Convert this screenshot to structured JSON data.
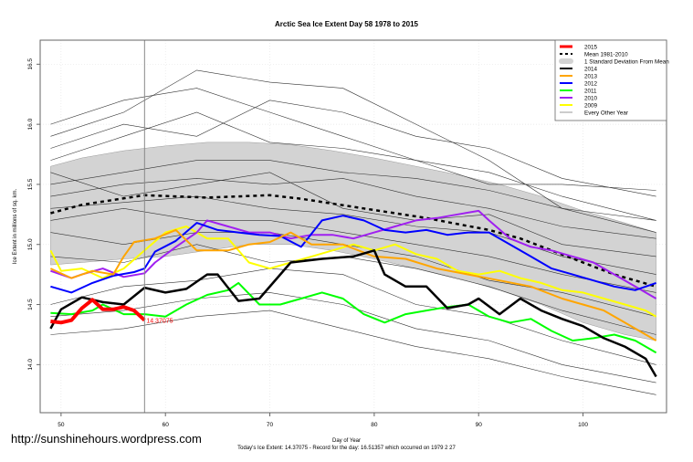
{
  "chart_data": {
    "type": "line",
    "title": "Arctic Sea Ice Extent Day 58 1978 to 2015",
    "xlabel": "Day of Year",
    "ylabel": "Ice Extent in millions of sq. km.",
    "xlim": [
      48,
      108
    ],
    "ylim": [
      13.6,
      16.7
    ],
    "xticks": [
      50,
      60,
      70,
      80,
      90,
      100
    ],
    "yticks": [
      14.0,
      14.5,
      15.0,
      15.5,
      16.0,
      16.5
    ],
    "ytick_labels": [
      "14.0",
      "14.5",
      "15.0",
      "15.5",
      "16.0",
      "16.5"
    ],
    "grid": true,
    "legend_position": "top-right",
    "current_day_marker": 58,
    "annotation": "14.37075",
    "std_band": {
      "name": "1 Standard Deviation From Mean",
      "color": "#d3d3d3",
      "x": [
        49,
        52,
        56,
        60,
        64,
        68,
        72,
        76,
        80,
        84,
        88,
        92,
        96,
        100,
        104,
        107
      ],
      "upper": [
        15.65,
        15.72,
        15.78,
        15.82,
        15.85,
        15.85,
        15.83,
        15.78,
        15.72,
        15.65,
        15.58,
        15.5,
        15.4,
        15.28,
        15.18,
        15.1
      ],
      "lower": [
        14.83,
        14.85,
        14.88,
        14.9,
        14.95,
        15.0,
        15.0,
        14.95,
        14.88,
        14.8,
        14.72,
        14.62,
        14.5,
        14.35,
        14.25,
        14.2
      ]
    },
    "mean": {
      "name": "Mean 1981-2010",
      "color": "#000000",
      "x": [
        49,
        52,
        55,
        58,
        61,
        64,
        67,
        70,
        73,
        76,
        79,
        82,
        85,
        88,
        91,
        94,
        97,
        100,
        103,
        107
      ],
      "y": [
        15.26,
        15.33,
        15.37,
        15.41,
        15.4,
        15.39,
        15.4,
        15.41,
        15.38,
        15.34,
        15.3,
        15.26,
        15.22,
        15.17,
        15.12,
        15.05,
        14.95,
        14.85,
        14.75,
        14.65
      ]
    },
    "series": [
      {
        "name": "2015",
        "color": "#ff0000",
        "width": 4,
        "x": [
          49,
          50,
          51,
          52,
          53,
          54,
          55,
          56,
          57,
          58
        ],
        "y": [
          14.36,
          14.35,
          14.37,
          14.47,
          14.54,
          14.46,
          14.46,
          14.48,
          14.45,
          14.37
        ]
      },
      {
        "name": "2014",
        "color": "#000000",
        "width": 2.5,
        "x": [
          49,
          50,
          52,
          54,
          56,
          58,
          60,
          62,
          64,
          65,
          67,
          69,
          72,
          75,
          78,
          80,
          81,
          83,
          85,
          87,
          89,
          90,
          92,
          94,
          96,
          98,
          100,
          102,
          104,
          106,
          107
        ],
        "y": [
          14.3,
          14.46,
          14.56,
          14.52,
          14.5,
          14.64,
          14.6,
          14.63,
          14.75,
          14.75,
          14.53,
          14.55,
          14.85,
          14.88,
          14.9,
          14.95,
          14.75,
          14.65,
          14.65,
          14.47,
          14.5,
          14.55,
          14.42,
          14.55,
          14.45,
          14.38,
          14.32,
          14.22,
          14.15,
          14.05,
          13.9
        ]
      },
      {
        "name": "2013",
        "color": "#ffa500",
        "width": 2,
        "x": [
          49,
          51,
          53,
          55,
          56,
          57,
          59,
          61,
          63,
          66,
          68,
          70,
          72,
          74,
          77,
          80,
          83,
          86,
          89,
          92,
          95,
          98,
          100,
          102,
          104,
          107
        ],
        "y": [
          14.8,
          14.72,
          14.78,
          14.75,
          14.9,
          15.02,
          15.05,
          15.12,
          14.95,
          14.95,
          15.0,
          15.02,
          15.1,
          15.0,
          15.0,
          14.9,
          14.88,
          14.8,
          14.75,
          14.7,
          14.65,
          14.55,
          14.5,
          14.45,
          14.35,
          14.2
        ]
      },
      {
        "name": "2012",
        "color": "#0000ff",
        "width": 2,
        "x": [
          49,
          51,
          53,
          55,
          57,
          58,
          59,
          61,
          63,
          65,
          67,
          69,
          71,
          73,
          75,
          77,
          79,
          81,
          83,
          85,
          87,
          89,
          91,
          93,
          95,
          97,
          99,
          101,
          103,
          105,
          107
        ],
        "y": [
          14.65,
          14.6,
          14.68,
          14.74,
          14.77,
          14.8,
          14.94,
          15.03,
          15.18,
          15.12,
          15.1,
          15.08,
          15.07,
          14.98,
          15.2,
          15.24,
          15.2,
          15.12,
          15.1,
          15.12,
          15.08,
          15.1,
          15.1,
          15.0,
          14.9,
          14.8,
          14.75,
          14.7,
          14.65,
          14.62,
          14.68
        ]
      },
      {
        "name": "2011",
        "color": "#00ff00",
        "width": 2,
        "x": [
          49,
          51,
          53,
          54,
          56,
          58,
          60,
          62,
          64,
          66,
          67,
          69,
          71,
          73,
          75,
          77,
          79,
          81,
          83,
          85,
          87,
          89,
          91,
          93,
          95,
          97,
          99,
          101,
          103,
          105,
          107
        ],
        "y": [
          14.43,
          14.42,
          14.45,
          14.5,
          14.42,
          14.42,
          14.4,
          14.5,
          14.58,
          14.62,
          14.68,
          14.5,
          14.5,
          14.55,
          14.6,
          14.55,
          14.42,
          14.35,
          14.42,
          14.45,
          14.48,
          14.5,
          14.4,
          14.35,
          14.38,
          14.28,
          14.2,
          14.22,
          14.25,
          14.2,
          14.1
        ]
      },
      {
        "name": "2010",
        "color": "#a020f0",
        "width": 2,
        "x": [
          49,
          51,
          52,
          54,
          56,
          58,
          59,
          61,
          63,
          64,
          66,
          68,
          70,
          72,
          74,
          76,
          78,
          80,
          82,
          84,
          86,
          88,
          90,
          91,
          93,
          95,
          97,
          99,
          101,
          103,
          105,
          107
        ],
        "y": [
          14.78,
          14.72,
          14.75,
          14.8,
          14.73,
          14.76,
          14.85,
          14.98,
          15.1,
          15.2,
          15.15,
          15.1,
          15.1,
          15.05,
          15.08,
          15.08,
          15.05,
          15.1,
          15.15,
          15.2,
          15.22,
          15.25,
          15.28,
          15.2,
          15.05,
          14.98,
          14.95,
          14.9,
          14.85,
          14.75,
          14.65,
          14.55
        ]
      },
      {
        "name": "2009",
        "color": "#ffff00",
        "width": 2,
        "x": [
          49,
          50,
          52,
          54,
          56,
          58,
          60,
          62,
          64,
          66,
          68,
          70,
          72,
          74,
          76,
          78,
          80,
          82,
          84,
          86,
          88,
          90,
          92,
          94,
          96,
          98,
          100,
          102,
          104,
          106,
          107
        ],
        "y": [
          14.95,
          14.78,
          14.8,
          14.72,
          14.8,
          14.95,
          15.1,
          15.15,
          15.05,
          15.05,
          14.85,
          14.8,
          14.85,
          14.9,
          14.95,
          15.0,
          14.95,
          15.0,
          14.92,
          14.88,
          14.78,
          14.75,
          14.78,
          14.72,
          14.68,
          14.62,
          14.6,
          14.55,
          14.5,
          14.45,
          14.4
        ]
      }
    ],
    "other_years": {
      "name": "Every Other Year",
      "color": "#333333",
      "x": [
        49,
        56,
        63,
        70,
        77,
        84,
        91,
        98,
        107
      ],
      "lines": [
        [
          15.9,
          16.1,
          16.45,
          16.35,
          16.3,
          16.0,
          15.7,
          15.3,
          15.2
        ],
        [
          16.0,
          16.2,
          16.3,
          16.1,
          15.9,
          15.7,
          15.5,
          15.5,
          15.45
        ],
        [
          15.8,
          16.0,
          15.9,
          16.2,
          16.1,
          15.9,
          15.8,
          15.55,
          15.4
        ],
        [
          15.7,
          15.9,
          16.1,
          15.85,
          15.8,
          15.7,
          15.6,
          15.4,
          15.2
        ],
        [
          15.5,
          15.6,
          15.7,
          15.7,
          15.6,
          15.55,
          15.45,
          15.3,
          15.1
        ],
        [
          15.4,
          15.5,
          15.55,
          15.5,
          15.55,
          15.4,
          15.3,
          15.15,
          15.05
        ],
        [
          15.6,
          15.4,
          15.5,
          15.6,
          15.3,
          15.2,
          15.25,
          15.0,
          14.9
        ],
        [
          15.3,
          15.35,
          15.4,
          15.3,
          15.25,
          15.15,
          15.1,
          14.9,
          14.75
        ],
        [
          15.2,
          15.3,
          15.2,
          15.2,
          15.1,
          15.0,
          14.9,
          14.75,
          14.6
        ],
        [
          15.1,
          15.0,
          15.1,
          15.1,
          15.0,
          14.9,
          14.7,
          14.6,
          14.4
        ],
        [
          14.9,
          14.85,
          15.0,
          14.85,
          14.9,
          14.8,
          14.65,
          14.45,
          14.25
        ],
        [
          14.5,
          14.65,
          14.7,
          14.8,
          14.75,
          14.5,
          14.4,
          14.2,
          14.0
        ],
        [
          14.4,
          14.45,
          14.55,
          14.6,
          14.5,
          14.3,
          14.2,
          14.0,
          13.85
        ],
        [
          14.25,
          14.3,
          14.4,
          14.45,
          14.3,
          14.15,
          14.05,
          13.9,
          13.75
        ]
      ]
    },
    "legend": [
      {
        "label": "2015",
        "color": "#ff0000",
        "style": "solid"
      },
      {
        "label": "Mean 1981-2010",
        "color": "#000000",
        "style": "dashed"
      },
      {
        "label": "1 Standard Deviation From Mean",
        "color": "#d3d3d3",
        "style": "band"
      },
      {
        "label": "2014",
        "color": "#000000",
        "style": "solid"
      },
      {
        "label": "2013",
        "color": "#ffa500",
        "style": "solid"
      },
      {
        "label": "2012",
        "color": "#0000ff",
        "style": "solid"
      },
      {
        "label": "2011",
        "color": "#00ff00",
        "style": "solid"
      },
      {
        "label": "2010",
        "color": "#a020f0",
        "style": "solid"
      },
      {
        "label": "2009",
        "color": "#ffff00",
        "style": "solid"
      },
      {
        "label": "Every Other Year",
        "color": "#999999",
        "style": "thin"
      }
    ]
  },
  "watermark": "http://sunshinehours.wordpress.com",
  "footer": "Today's Ice Extent: 14.37075  - Record for the day: 16.51357 which occurred on 1979 2 27"
}
